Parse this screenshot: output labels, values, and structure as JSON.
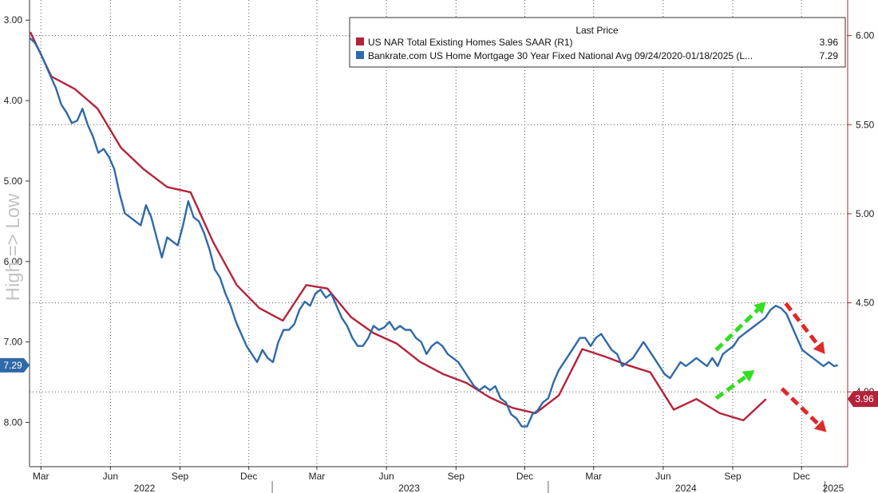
{
  "chart_data": {
    "type": "line",
    "side_label": "High => Low",
    "x_range": [
      "2022-02-14",
      "2025-01-31"
    ],
    "month_labels": [
      {
        "label": "Mar",
        "date": "2022-03-01"
      },
      {
        "label": "Jun",
        "date": "2022-06-01"
      },
      {
        "label": "Sep",
        "date": "2022-09-01"
      },
      {
        "label": "Dec",
        "date": "2022-12-01"
      },
      {
        "label": "Mar",
        "date": "2023-03-01"
      },
      {
        "label": "Jun",
        "date": "2023-06-01"
      },
      {
        "label": "Sep",
        "date": "2023-09-01"
      },
      {
        "label": "Dec",
        "date": "2023-12-01"
      },
      {
        "label": "Mar",
        "date": "2024-03-01"
      },
      {
        "label": "Jun",
        "date": "2024-06-01"
      },
      {
        "label": "Sep",
        "date": "2024-09-01"
      },
      {
        "label": "Dec",
        "date": "2024-12-01"
      }
    ],
    "year_labels": [
      {
        "label": "2022",
        "date": "2022-07-16"
      },
      {
        "label": "2023",
        "date": "2023-07-01"
      },
      {
        "label": "2024",
        "date": "2024-07-01"
      },
      {
        "label": "2025",
        "date": "2025-01-12"
      }
    ],
    "year_separators": [
      "2023-01-01",
      "2024-01-01",
      "2025-01-01"
    ],
    "left_axis": {
      "inverted": true,
      "range": [
        2.75,
        8.55
      ],
      "ticks": [
        3.0,
        4.0,
        5.0,
        6.0,
        7.0,
        8.0
      ],
      "tick_labels": [
        "3.00",
        "4.00",
        "5.00",
        "6.00",
        "7.00",
        "8.00"
      ]
    },
    "right_axis": {
      "range": [
        3.58,
        6.2
      ],
      "ticks": [
        4.0,
        4.5,
        5.0,
        5.5,
        6.0
      ],
      "tick_labels": [
        "4.00",
        "4.50",
        "5.00",
        "5.50",
        "6.00"
      ]
    },
    "grid": true,
    "legend": {
      "position": "top-right",
      "header": "Last Price",
      "entries": [
        {
          "label": "US NAR Total Existing Homes Sales SAAR  (R1)",
          "value": "3.96",
          "color": "#b5223a"
        },
        {
          "label": "Bankrate.com US Home Mortgage 30 Year Fixed National Avg 09/24/2020-01/18/2025   (L...",
          "value": "7.29",
          "color": "#2f69a8"
        }
      ]
    },
    "series": [
      {
        "name": "US NAR Total Existing Homes Sales SAAR  (R1)",
        "axis": "right",
        "color": "#b5223a",
        "last_value": "3.96",
        "points": [
          [
            "2022-02-15",
            6.02
          ],
          [
            "2022-03-15",
            5.77
          ],
          [
            "2022-04-15",
            5.7
          ],
          [
            "2022-05-15",
            5.59
          ],
          [
            "2022-06-15",
            5.37
          ],
          [
            "2022-07-15",
            5.25
          ],
          [
            "2022-08-15",
            5.15
          ],
          [
            "2022-09-15",
            5.12
          ],
          [
            "2022-10-15",
            4.84
          ],
          [
            "2022-11-15",
            4.6
          ],
          [
            "2022-12-15",
            4.47
          ],
          [
            "2023-01-15",
            4.4
          ],
          [
            "2023-02-15",
            4.6
          ],
          [
            "2023-03-15",
            4.58
          ],
          [
            "2023-04-15",
            4.42
          ],
          [
            "2023-05-15",
            4.33
          ],
          [
            "2023-06-15",
            4.27
          ],
          [
            "2023-07-15",
            4.17
          ],
          [
            "2023-08-15",
            4.1
          ],
          [
            "2023-09-15",
            4.05
          ],
          [
            "2023-10-15",
            3.97
          ],
          [
            "2023-11-15",
            3.91
          ],
          [
            "2023-12-15",
            3.88
          ],
          [
            "2024-01-15",
            3.98
          ],
          [
            "2024-02-15",
            4.24
          ],
          [
            "2024-03-15",
            4.2
          ],
          [
            "2024-04-15",
            4.15
          ],
          [
            "2024-05-15",
            4.11
          ],
          [
            "2024-06-15",
            3.9
          ],
          [
            "2024-07-15",
            3.96
          ],
          [
            "2024-08-15",
            3.88
          ],
          [
            "2024-09-15",
            3.84
          ],
          [
            "2024-10-15",
            3.96
          ]
        ]
      },
      {
        "name": "Bankrate.com US Home Mortgage 30 Year Fixed National Avg 09/24/2020-01/18/2025   (L...",
        "axis": "left",
        "color": "#2f69a8",
        "last_value": "7.29",
        "points": [
          [
            "2022-02-14",
            3.22
          ],
          [
            "2022-02-21",
            3.28
          ],
          [
            "2022-02-28",
            3.4
          ],
          [
            "2022-03-07",
            3.55
          ],
          [
            "2022-03-14",
            3.7
          ],
          [
            "2022-03-21",
            3.85
          ],
          [
            "2022-03-28",
            4.05
          ],
          [
            "2022-04-04",
            4.15
          ],
          [
            "2022-04-11",
            4.28
          ],
          [
            "2022-04-18",
            4.25
          ],
          [
            "2022-04-25",
            4.1
          ],
          [
            "2022-05-02",
            4.3
          ],
          [
            "2022-05-09",
            4.45
          ],
          [
            "2022-05-16",
            4.65
          ],
          [
            "2022-05-23",
            4.6
          ],
          [
            "2022-05-30",
            4.7
          ],
          [
            "2022-06-06",
            4.85
          ],
          [
            "2022-06-13",
            5.15
          ],
          [
            "2022-06-20",
            5.4
          ],
          [
            "2022-06-27",
            5.45
          ],
          [
            "2022-07-04",
            5.5
          ],
          [
            "2022-07-11",
            5.55
          ],
          [
            "2022-07-18",
            5.3
          ],
          [
            "2022-07-25",
            5.45
          ],
          [
            "2022-08-01",
            5.7
          ],
          [
            "2022-08-08",
            5.95
          ],
          [
            "2022-08-15",
            5.7
          ],
          [
            "2022-08-22",
            5.75
          ],
          [
            "2022-08-29",
            5.8
          ],
          [
            "2022-09-05",
            5.55
          ],
          [
            "2022-09-12",
            5.25
          ],
          [
            "2022-09-19",
            5.45
          ],
          [
            "2022-09-26",
            5.5
          ],
          [
            "2022-10-03",
            5.65
          ],
          [
            "2022-10-10",
            5.85
          ],
          [
            "2022-10-17",
            6.1
          ],
          [
            "2022-10-24",
            6.2
          ],
          [
            "2022-10-31",
            6.4
          ],
          [
            "2022-11-07",
            6.55
          ],
          [
            "2022-11-14",
            6.75
          ],
          [
            "2022-11-21",
            6.9
          ],
          [
            "2022-11-28",
            7.05
          ],
          [
            "2022-12-05",
            7.15
          ],
          [
            "2022-12-12",
            7.25
          ],
          [
            "2022-12-19",
            7.1
          ],
          [
            "2022-12-26",
            7.2
          ],
          [
            "2023-01-02",
            7.25
          ],
          [
            "2023-01-09",
            7.0
          ],
          [
            "2023-01-16",
            6.85
          ],
          [
            "2023-01-23",
            6.85
          ],
          [
            "2023-01-30",
            6.78
          ],
          [
            "2023-02-06",
            6.6
          ],
          [
            "2023-02-13",
            6.5
          ],
          [
            "2023-02-20",
            6.55
          ],
          [
            "2023-02-27",
            6.4
          ],
          [
            "2023-03-06",
            6.35
          ],
          [
            "2023-03-13",
            6.45
          ],
          [
            "2023-03-20",
            6.4
          ],
          [
            "2023-03-27",
            6.55
          ],
          [
            "2023-04-03",
            6.7
          ],
          [
            "2023-04-10",
            6.8
          ],
          [
            "2023-04-17",
            6.95
          ],
          [
            "2023-04-24",
            7.05
          ],
          [
            "2023-05-01",
            7.05
          ],
          [
            "2023-05-08",
            6.95
          ],
          [
            "2023-05-15",
            6.8
          ],
          [
            "2023-05-22",
            6.85
          ],
          [
            "2023-05-29",
            6.82
          ],
          [
            "2023-06-05",
            6.75
          ],
          [
            "2023-06-12",
            6.85
          ],
          [
            "2023-06-19",
            6.8
          ],
          [
            "2023-06-26",
            6.85
          ],
          [
            "2023-07-03",
            6.85
          ],
          [
            "2023-07-10",
            6.95
          ],
          [
            "2023-07-17",
            7.0
          ],
          [
            "2023-07-24",
            7.15
          ],
          [
            "2023-07-31",
            7.05
          ],
          [
            "2023-08-07",
            7.0
          ],
          [
            "2023-08-14",
            7.05
          ],
          [
            "2023-08-21",
            7.15
          ],
          [
            "2023-08-28",
            7.2
          ],
          [
            "2023-09-04",
            7.25
          ],
          [
            "2023-09-11",
            7.35
          ],
          [
            "2023-09-18",
            7.45
          ],
          [
            "2023-09-25",
            7.55
          ],
          [
            "2023-10-02",
            7.6
          ],
          [
            "2023-10-09",
            7.55
          ],
          [
            "2023-10-16",
            7.6
          ],
          [
            "2023-10-23",
            7.55
          ],
          [
            "2023-10-30",
            7.7
          ],
          [
            "2023-11-06",
            7.75
          ],
          [
            "2023-11-13",
            7.9
          ],
          [
            "2023-11-20",
            7.95
          ],
          [
            "2023-11-27",
            8.05
          ],
          [
            "2023-12-04",
            8.05
          ],
          [
            "2023-12-11",
            7.9
          ],
          [
            "2023-12-18",
            7.85
          ],
          [
            "2023-12-25",
            7.75
          ],
          [
            "2024-01-01",
            7.7
          ],
          [
            "2024-01-08",
            7.5
          ],
          [
            "2024-01-15",
            7.35
          ],
          [
            "2024-01-22",
            7.25
          ],
          [
            "2024-01-29",
            7.15
          ],
          [
            "2024-02-05",
            7.05
          ],
          [
            "2024-02-12",
            6.95
          ],
          [
            "2024-02-19",
            6.95
          ],
          [
            "2024-02-26",
            7.05
          ],
          [
            "2024-03-04",
            6.95
          ],
          [
            "2024-03-11",
            6.9
          ],
          [
            "2024-03-18",
            7.0
          ],
          [
            "2024-03-25",
            7.1
          ],
          [
            "2024-04-01",
            7.15
          ],
          [
            "2024-04-08",
            7.3
          ],
          [
            "2024-04-15",
            7.25
          ],
          [
            "2024-04-22",
            7.2
          ],
          [
            "2024-04-29",
            7.1
          ],
          [
            "2024-05-06",
            7.0
          ],
          [
            "2024-05-13",
            7.1
          ],
          [
            "2024-05-20",
            7.2
          ],
          [
            "2024-05-27",
            7.3
          ],
          [
            "2024-06-03",
            7.4
          ],
          [
            "2024-06-10",
            7.45
          ],
          [
            "2024-06-17",
            7.35
          ],
          [
            "2024-06-24",
            7.25
          ],
          [
            "2024-07-01",
            7.3
          ],
          [
            "2024-07-08",
            7.25
          ],
          [
            "2024-07-15",
            7.2
          ],
          [
            "2024-07-22",
            7.25
          ],
          [
            "2024-07-29",
            7.3
          ],
          [
            "2024-08-05",
            7.2
          ],
          [
            "2024-08-12",
            7.3
          ],
          [
            "2024-08-19",
            7.15
          ],
          [
            "2024-08-26",
            7.1
          ],
          [
            "2024-09-02",
            7.05
          ],
          [
            "2024-09-09",
            6.95
          ],
          [
            "2024-09-16",
            6.9
          ],
          [
            "2024-09-23",
            6.85
          ],
          [
            "2024-09-30",
            6.8
          ],
          [
            "2024-10-07",
            6.75
          ],
          [
            "2024-10-14",
            6.7
          ],
          [
            "2024-10-21",
            6.6
          ],
          [
            "2024-10-28",
            6.55
          ],
          [
            "2024-11-04",
            6.58
          ],
          [
            "2024-11-11",
            6.65
          ],
          [
            "2024-11-18",
            6.8
          ],
          [
            "2024-11-25",
            6.95
          ],
          [
            "2024-12-02",
            7.1
          ],
          [
            "2024-12-09",
            7.15
          ],
          [
            "2024-12-16",
            7.2
          ],
          [
            "2024-12-23",
            7.25
          ],
          [
            "2024-12-30",
            7.3
          ],
          [
            "2025-01-06",
            7.25
          ],
          [
            "2025-01-13",
            7.3
          ],
          [
            "2025-01-18",
            7.29
          ]
        ]
      }
    ],
    "annotations": [
      {
        "type": "arrow",
        "color": "#33dd22",
        "from": [
          "2024-08-10",
          7.1
        ],
        "to": [
          "2024-10-15",
          6.5
        ],
        "axis": "left"
      },
      {
        "type": "arrow",
        "color": "#33dd22",
        "from": [
          "2024-08-10",
          7.7
        ],
        "to": [
          "2024-09-30",
          7.35
        ],
        "axis": "left"
      },
      {
        "type": "arrow",
        "color": "#dd2a2a",
        "from": [
          "2024-11-10",
          6.52
        ],
        "to": [
          "2025-01-01",
          7.15
        ],
        "axis": "left"
      },
      {
        "type": "arrow",
        "color": "#dd2a2a",
        "from": [
          "2024-11-05",
          7.58
        ],
        "to": [
          "2025-01-03",
          8.12
        ],
        "axis": "left"
      }
    ]
  }
}
